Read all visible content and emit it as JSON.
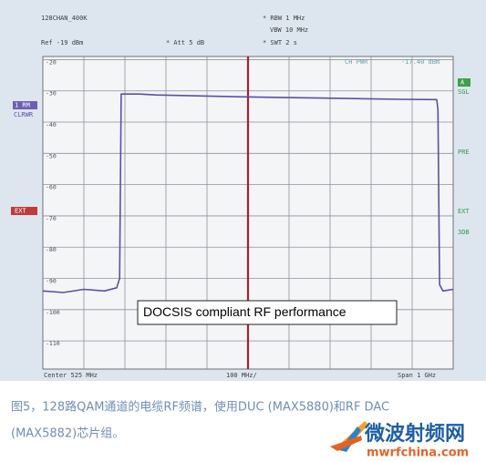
{
  "chart_data": {
    "type": "line",
    "header": [
      "128CHAN_400K",
      "* RBW 1 MHz",
      "VBW 10 MHz",
      "Ref -19 dBm",
      "* Att 5 dB",
      "* SWT 2 s"
    ],
    "marker_readout": [
      "CH PWR",
      "-17.40 dBm"
    ],
    "left_labels": [
      "1 RM",
      "CLRWR",
      "EXT"
    ],
    "right_labels": [
      "A",
      "SGL",
      "PRE",
      "EXT",
      "3DB"
    ],
    "footer": [
      "Center 525 MHz",
      "100 MHz/",
      "Span 1 GHz"
    ],
    "annotation": "DOCSIS compliant RF performance",
    "caption": [
      "图5，128路QAM通道的电缆RF频谱，使用DUC (MAX5880)和RF DAC",
      "(MAX5882)芯片组。"
    ],
    "logo": [
      "微波射频网",
      "mwrfchina.com"
    ],
    "x": [
      25,
      75,
      125,
      175,
      205,
      212,
      216,
      260,
      300,
      400,
      500,
      600,
      700,
      800,
      900,
      985,
      988,
      992,
      1000,
      1025
    ],
    "series": [
      {
        "name": "1 RM",
        "color": "#5a4ea8",
        "values": [
          -94,
          -94.5,
          -93.5,
          -94,
          -93,
          -90,
          -31,
          -31,
          -31.3,
          -31.6,
          -31.9,
          -32.1,
          -32.3,
          -32.5,
          -32.7,
          -32.8,
          -36,
          -92,
          -94,
          -93.5
        ]
      }
    ],
    "xlim": [
      25,
      1025
    ],
    "ylim": [
      -119,
      -19
    ],
    "yticks": [
      -20,
      -30,
      -40,
      -50,
      -60,
      -70,
      -80,
      -90,
      -100,
      -110
    ],
    "grid": true
  }
}
